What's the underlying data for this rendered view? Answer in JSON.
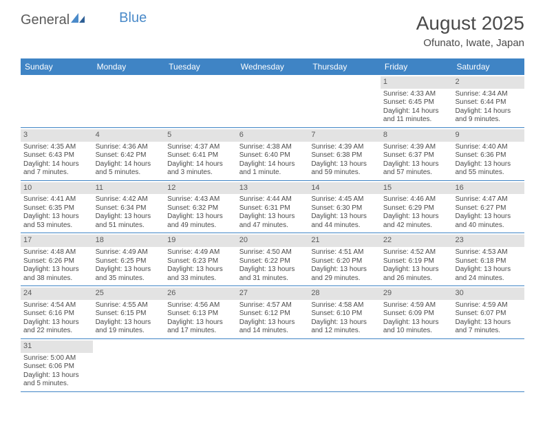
{
  "logo": {
    "part1": "General",
    "part2": "Blue"
  },
  "title": "August 2025",
  "location": "Ofunato, Iwate, Japan",
  "day_headers": [
    "Sunday",
    "Monday",
    "Tuesday",
    "Wednesday",
    "Thursday",
    "Friday",
    "Saturday"
  ],
  "colors": {
    "header_bg": "#3f84c5",
    "header_text": "#ffffff",
    "daynum_bg": "#e3e3e3",
    "border": "#3f84c5",
    "text": "#4a4a4a",
    "logo_blue": "#4a8ac9"
  },
  "weeks": [
    [
      null,
      null,
      null,
      null,
      null,
      {
        "n": "1",
        "sr": "Sunrise: 4:33 AM",
        "ss": "Sunset: 6:45 PM",
        "d1": "Daylight: 14 hours",
        "d2": "and 11 minutes."
      },
      {
        "n": "2",
        "sr": "Sunrise: 4:34 AM",
        "ss": "Sunset: 6:44 PM",
        "d1": "Daylight: 14 hours",
        "d2": "and 9 minutes."
      }
    ],
    [
      {
        "n": "3",
        "sr": "Sunrise: 4:35 AM",
        "ss": "Sunset: 6:43 PM",
        "d1": "Daylight: 14 hours",
        "d2": "and 7 minutes."
      },
      {
        "n": "4",
        "sr": "Sunrise: 4:36 AM",
        "ss": "Sunset: 6:42 PM",
        "d1": "Daylight: 14 hours",
        "d2": "and 5 minutes."
      },
      {
        "n": "5",
        "sr": "Sunrise: 4:37 AM",
        "ss": "Sunset: 6:41 PM",
        "d1": "Daylight: 14 hours",
        "d2": "and 3 minutes."
      },
      {
        "n": "6",
        "sr": "Sunrise: 4:38 AM",
        "ss": "Sunset: 6:40 PM",
        "d1": "Daylight: 14 hours",
        "d2": "and 1 minute."
      },
      {
        "n": "7",
        "sr": "Sunrise: 4:39 AM",
        "ss": "Sunset: 6:38 PM",
        "d1": "Daylight: 13 hours",
        "d2": "and 59 minutes."
      },
      {
        "n": "8",
        "sr": "Sunrise: 4:39 AM",
        "ss": "Sunset: 6:37 PM",
        "d1": "Daylight: 13 hours",
        "d2": "and 57 minutes."
      },
      {
        "n": "9",
        "sr": "Sunrise: 4:40 AM",
        "ss": "Sunset: 6:36 PM",
        "d1": "Daylight: 13 hours",
        "d2": "and 55 minutes."
      }
    ],
    [
      {
        "n": "10",
        "sr": "Sunrise: 4:41 AM",
        "ss": "Sunset: 6:35 PM",
        "d1": "Daylight: 13 hours",
        "d2": "and 53 minutes."
      },
      {
        "n": "11",
        "sr": "Sunrise: 4:42 AM",
        "ss": "Sunset: 6:34 PM",
        "d1": "Daylight: 13 hours",
        "d2": "and 51 minutes."
      },
      {
        "n": "12",
        "sr": "Sunrise: 4:43 AM",
        "ss": "Sunset: 6:32 PM",
        "d1": "Daylight: 13 hours",
        "d2": "and 49 minutes."
      },
      {
        "n": "13",
        "sr": "Sunrise: 4:44 AM",
        "ss": "Sunset: 6:31 PM",
        "d1": "Daylight: 13 hours",
        "d2": "and 47 minutes."
      },
      {
        "n": "14",
        "sr": "Sunrise: 4:45 AM",
        "ss": "Sunset: 6:30 PM",
        "d1": "Daylight: 13 hours",
        "d2": "and 44 minutes."
      },
      {
        "n": "15",
        "sr": "Sunrise: 4:46 AM",
        "ss": "Sunset: 6:29 PM",
        "d1": "Daylight: 13 hours",
        "d2": "and 42 minutes."
      },
      {
        "n": "16",
        "sr": "Sunrise: 4:47 AM",
        "ss": "Sunset: 6:27 PM",
        "d1": "Daylight: 13 hours",
        "d2": "and 40 minutes."
      }
    ],
    [
      {
        "n": "17",
        "sr": "Sunrise: 4:48 AM",
        "ss": "Sunset: 6:26 PM",
        "d1": "Daylight: 13 hours",
        "d2": "and 38 minutes."
      },
      {
        "n": "18",
        "sr": "Sunrise: 4:49 AM",
        "ss": "Sunset: 6:25 PM",
        "d1": "Daylight: 13 hours",
        "d2": "and 35 minutes."
      },
      {
        "n": "19",
        "sr": "Sunrise: 4:49 AM",
        "ss": "Sunset: 6:23 PM",
        "d1": "Daylight: 13 hours",
        "d2": "and 33 minutes."
      },
      {
        "n": "20",
        "sr": "Sunrise: 4:50 AM",
        "ss": "Sunset: 6:22 PM",
        "d1": "Daylight: 13 hours",
        "d2": "and 31 minutes."
      },
      {
        "n": "21",
        "sr": "Sunrise: 4:51 AM",
        "ss": "Sunset: 6:20 PM",
        "d1": "Daylight: 13 hours",
        "d2": "and 29 minutes."
      },
      {
        "n": "22",
        "sr": "Sunrise: 4:52 AM",
        "ss": "Sunset: 6:19 PM",
        "d1": "Daylight: 13 hours",
        "d2": "and 26 minutes."
      },
      {
        "n": "23",
        "sr": "Sunrise: 4:53 AM",
        "ss": "Sunset: 6:18 PM",
        "d1": "Daylight: 13 hours",
        "d2": "and 24 minutes."
      }
    ],
    [
      {
        "n": "24",
        "sr": "Sunrise: 4:54 AM",
        "ss": "Sunset: 6:16 PM",
        "d1": "Daylight: 13 hours",
        "d2": "and 22 minutes."
      },
      {
        "n": "25",
        "sr": "Sunrise: 4:55 AM",
        "ss": "Sunset: 6:15 PM",
        "d1": "Daylight: 13 hours",
        "d2": "and 19 minutes."
      },
      {
        "n": "26",
        "sr": "Sunrise: 4:56 AM",
        "ss": "Sunset: 6:13 PM",
        "d1": "Daylight: 13 hours",
        "d2": "and 17 minutes."
      },
      {
        "n": "27",
        "sr": "Sunrise: 4:57 AM",
        "ss": "Sunset: 6:12 PM",
        "d1": "Daylight: 13 hours",
        "d2": "and 14 minutes."
      },
      {
        "n": "28",
        "sr": "Sunrise: 4:58 AM",
        "ss": "Sunset: 6:10 PM",
        "d1": "Daylight: 13 hours",
        "d2": "and 12 minutes."
      },
      {
        "n": "29",
        "sr": "Sunrise: 4:59 AM",
        "ss": "Sunset: 6:09 PM",
        "d1": "Daylight: 13 hours",
        "d2": "and 10 minutes."
      },
      {
        "n": "30",
        "sr": "Sunrise: 4:59 AM",
        "ss": "Sunset: 6:07 PM",
        "d1": "Daylight: 13 hours",
        "d2": "and 7 minutes."
      }
    ],
    [
      {
        "n": "31",
        "sr": "Sunrise: 5:00 AM",
        "ss": "Sunset: 6:06 PM",
        "d1": "Daylight: 13 hours",
        "d2": "and 5 minutes."
      },
      null,
      null,
      null,
      null,
      null,
      null
    ]
  ]
}
